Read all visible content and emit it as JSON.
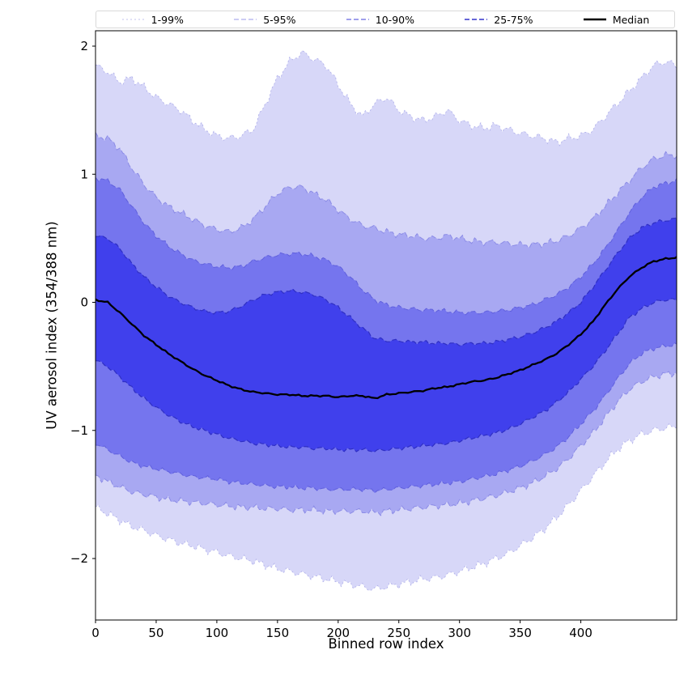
{
  "chart_data": {
    "type": "area",
    "title": "",
    "xlabel": "Binned row index",
    "ylabel": "UV aerosol index (354/388 nm)",
    "xlim": [
      0,
      479
    ],
    "ylim": [
      -2.48,
      2.12
    ],
    "xticks": [
      0,
      50,
      100,
      150,
      200,
      250,
      300,
      350,
      400
    ],
    "yticks": [
      -2,
      -1,
      0,
      1,
      2
    ],
    "grid": false,
    "legend_position": "top",
    "x": [
      0,
      10,
      20,
      30,
      40,
      50,
      60,
      70,
      80,
      90,
      100,
      110,
      120,
      130,
      140,
      150,
      160,
      170,
      180,
      190,
      200,
      210,
      220,
      230,
      240,
      250,
      260,
      270,
      280,
      290,
      300,
      310,
      320,
      330,
      340,
      350,
      360,
      370,
      380,
      390,
      400,
      410,
      420,
      430,
      440,
      450,
      460,
      470,
      479
    ],
    "percentiles": {
      "p99": [
        1.85,
        1.8,
        1.72,
        1.75,
        1.68,
        1.6,
        1.55,
        1.5,
        1.42,
        1.35,
        1.3,
        1.28,
        1.3,
        1.35,
        1.55,
        1.75,
        1.88,
        1.95,
        1.9,
        1.85,
        1.7,
        1.55,
        1.45,
        1.55,
        1.6,
        1.5,
        1.45,
        1.42,
        1.45,
        1.5,
        1.42,
        1.38,
        1.36,
        1.38,
        1.35,
        1.32,
        1.3,
        1.28,
        1.25,
        1.28,
        1.3,
        1.35,
        1.45,
        1.55,
        1.65,
        1.75,
        1.85,
        1.88,
        1.85
      ],
      "p95": [
        1.3,
        1.28,
        1.2,
        1.05,
        0.92,
        0.82,
        0.75,
        0.7,
        0.65,
        0.6,
        0.57,
        0.55,
        0.58,
        0.65,
        0.75,
        0.85,
        0.9,
        0.9,
        0.85,
        0.8,
        0.72,
        0.65,
        0.6,
        0.58,
        0.55,
        0.53,
        0.52,
        0.5,
        0.5,
        0.52,
        0.5,
        0.48,
        0.47,
        0.47,
        0.46,
        0.45,
        0.45,
        0.46,
        0.48,
        0.52,
        0.58,
        0.65,
        0.75,
        0.85,
        0.95,
        1.05,
        1.12,
        1.15,
        1.15
      ],
      "p90": [
        0.97,
        0.95,
        0.88,
        0.75,
        0.62,
        0.52,
        0.44,
        0.38,
        0.33,
        0.3,
        0.28,
        0.27,
        0.28,
        0.32,
        0.35,
        0.37,
        0.38,
        0.38,
        0.36,
        0.33,
        0.28,
        0.2,
        0.1,
        0.02,
        -0.02,
        -0.04,
        -0.05,
        -0.06,
        -0.06,
        -0.07,
        -0.08,
        -0.08,
        -0.08,
        -0.07,
        -0.06,
        -0.04,
        -0.02,
        0.02,
        0.06,
        0.12,
        0.2,
        0.3,
        0.42,
        0.56,
        0.7,
        0.82,
        0.9,
        0.93,
        0.95
      ],
      "p75": [
        0.52,
        0.5,
        0.42,
        0.3,
        0.2,
        0.12,
        0.05,
        0.0,
        -0.04,
        -0.07,
        -0.08,
        -0.07,
        -0.03,
        0.02,
        0.06,
        0.08,
        0.09,
        0.08,
        0.06,
        0.02,
        -0.04,
        -0.12,
        -0.2,
        -0.28,
        -0.3,
        -0.3,
        -0.31,
        -0.31,
        -0.32,
        -0.32,
        -0.33,
        -0.32,
        -0.32,
        -0.31,
        -0.29,
        -0.27,
        -0.24,
        -0.2,
        -0.15,
        -0.08,
        0.0,
        0.12,
        0.25,
        0.38,
        0.5,
        0.58,
        0.62,
        0.64,
        0.65
      ],
      "p25": [
        -0.45,
        -0.5,
        -0.58,
        -0.67,
        -0.75,
        -0.82,
        -0.88,
        -0.93,
        -0.97,
        -1.0,
        -1.03,
        -1.06,
        -1.08,
        -1.1,
        -1.11,
        -1.12,
        -1.13,
        -1.13,
        -1.14,
        -1.14,
        -1.15,
        -1.15,
        -1.15,
        -1.16,
        -1.15,
        -1.14,
        -1.13,
        -1.12,
        -1.11,
        -1.1,
        -1.08,
        -1.06,
        -1.04,
        -1.02,
        -0.99,
        -0.95,
        -0.9,
        -0.85,
        -0.78,
        -0.7,
        -0.6,
        -0.5,
        -0.38,
        -0.25,
        -0.12,
        -0.05,
        0.0,
        0.02,
        0.02
      ],
      "p10": [
        -1.1,
        -1.15,
        -1.2,
        -1.25,
        -1.28,
        -1.3,
        -1.32,
        -1.34,
        -1.36,
        -1.37,
        -1.38,
        -1.4,
        -1.41,
        -1.42,
        -1.43,
        -1.44,
        -1.44,
        -1.45,
        -1.45,
        -1.46,
        -1.46,
        -1.46,
        -1.46,
        -1.47,
        -1.46,
        -1.45,
        -1.44,
        -1.43,
        -1.42,
        -1.41,
        -1.4,
        -1.38,
        -1.36,
        -1.34,
        -1.31,
        -1.28,
        -1.24,
        -1.19,
        -1.13,
        -1.05,
        -0.95,
        -0.85,
        -0.73,
        -0.6,
        -0.48,
        -0.4,
        -0.36,
        -0.34,
        -0.33
      ],
      "p5": [
        -1.35,
        -1.4,
        -1.44,
        -1.48,
        -1.5,
        -1.52,
        -1.54,
        -1.55,
        -1.56,
        -1.57,
        -1.58,
        -1.59,
        -1.6,
        -1.6,
        -1.61,
        -1.61,
        -1.62,
        -1.62,
        -1.62,
        -1.63,
        -1.63,
        -1.63,
        -1.63,
        -1.64,
        -1.63,
        -1.62,
        -1.61,
        -1.6,
        -1.59,
        -1.58,
        -1.57,
        -1.55,
        -1.53,
        -1.51,
        -1.48,
        -1.45,
        -1.41,
        -1.36,
        -1.3,
        -1.22,
        -1.12,
        -1.02,
        -0.9,
        -0.78,
        -0.68,
        -0.62,
        -0.58,
        -0.56,
        -0.55
      ],
      "p1": [
        -1.6,
        -1.65,
        -1.7,
        -1.75,
        -1.78,
        -1.82,
        -1.85,
        -1.88,
        -1.9,
        -1.93,
        -1.95,
        -1.98,
        -2.0,
        -2.02,
        -2.05,
        -2.08,
        -2.1,
        -2.12,
        -2.14,
        -2.16,
        -2.18,
        -2.2,
        -2.22,
        -2.24,
        -2.22,
        -2.2,
        -2.18,
        -2.16,
        -2.15,
        -2.13,
        -2.1,
        -2.07,
        -2.04,
        -2.0,
        -1.96,
        -1.9,
        -1.84,
        -1.77,
        -1.68,
        -1.58,
        -1.47,
        -1.36,
        -1.25,
        -1.15,
        -1.08,
        -1.03,
        -1.0,
        -0.98,
        -0.97
      ]
    },
    "bands": [
      {
        "label": "1-99%",
        "lower": "p1",
        "upper": "p99",
        "fill": "#d7d7f8",
        "edge": "#b0b0ea",
        "dash": "2 3",
        "width": 0.9
      },
      {
        "label": "5-95%",
        "lower": "p5",
        "upper": "p95",
        "fill": "#a8a8f2",
        "edge": "#8b8be6",
        "dash": "6 3",
        "width": 1
      },
      {
        "label": "10-90%",
        "lower": "p10",
        "upper": "p90",
        "fill": "#7575ee",
        "edge": "#5f5fdd",
        "dash": "6 3",
        "width": 1
      },
      {
        "label": "25-75%",
        "lower": "p25",
        "upper": "p75",
        "fill": "#4040ec",
        "edge": "#2f2fc4",
        "dash": "6 3",
        "width": 1.2
      }
    ],
    "median": {
      "label": "Median",
      "color": "#000000",
      "width": 2.3,
      "values": [
        0.02,
        0.0,
        -0.08,
        -0.17,
        -0.26,
        -0.33,
        -0.4,
        -0.46,
        -0.52,
        -0.57,
        -0.61,
        -0.65,
        -0.68,
        -0.7,
        -0.71,
        -0.72,
        -0.72,
        -0.73,
        -0.73,
        -0.73,
        -0.74,
        -0.73,
        -0.73,
        -0.75,
        -0.72,
        -0.71,
        -0.7,
        -0.69,
        -0.67,
        -0.66,
        -0.64,
        -0.62,
        -0.61,
        -0.59,
        -0.56,
        -0.53,
        -0.49,
        -0.45,
        -0.4,
        -0.33,
        -0.25,
        -0.15,
        -0.02,
        0.1,
        0.2,
        0.27,
        0.32,
        0.34,
        0.35
      ]
    }
  },
  "legend": {
    "entries": [
      {
        "label": "1-99%",
        "color": "#c0c0ee",
        "dash": "2 3",
        "width": 1
      },
      {
        "label": "5-95%",
        "color": "#9a9ae8",
        "dash": "6 3",
        "width": 1
      },
      {
        "label": "10-90%",
        "color": "#6868e0",
        "dash": "6 3",
        "width": 1.2
      },
      {
        "label": "25-75%",
        "color": "#3333cc",
        "dash": "6 3",
        "width": 1.4
      },
      {
        "label": "Median",
        "color": "#000000",
        "dash": "",
        "width": 2.5
      }
    ]
  }
}
